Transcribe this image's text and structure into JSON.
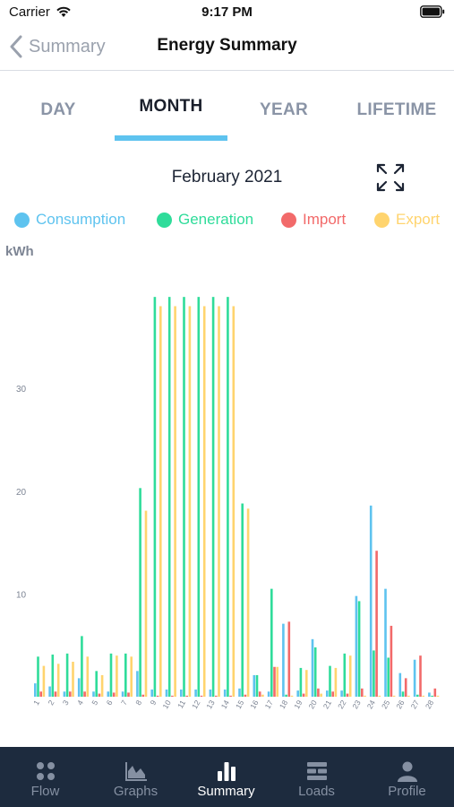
{
  "status_bar": {
    "carrier": "Carrier",
    "time": "9:17 PM"
  },
  "nav": {
    "back_label": "Summary",
    "title": "Energy Summary"
  },
  "tabs": [
    {
      "label": "DAY",
      "active": false
    },
    {
      "label": "MONTH",
      "active": true
    },
    {
      "label": "YEAR",
      "active": false
    },
    {
      "label": "LIFETIME",
      "active": false
    }
  ],
  "period": {
    "label": "February 2021"
  },
  "legend": [
    {
      "label": "Consumption",
      "color": "#5ec3ef"
    },
    {
      "label": "Generation",
      "color": "#2fdc9a"
    },
    {
      "label": "Import",
      "color": "#f26a6a"
    },
    {
      "label": "Export",
      "color": "#ffd46e"
    }
  ],
  "unit_label": "kWh",
  "chart_data": {
    "type": "bar",
    "ylabel": "kWh",
    "ylim": [
      0,
      39
    ],
    "yticks": [
      10,
      20,
      30
    ],
    "categories": [
      "1",
      "2",
      "3",
      "4",
      "5",
      "6",
      "7",
      "8",
      "9",
      "10",
      "11",
      "12",
      "13",
      "14",
      "15",
      "16",
      "17",
      "18",
      "19",
      "20",
      "21",
      "22",
      "23",
      "24",
      "25",
      "26",
      "27",
      "28"
    ],
    "series": [
      {
        "name": "Consumption",
        "color": "#5ec3ef",
        "values": [
          1.3,
          1.0,
          0.5,
          1.8,
          0.5,
          0.5,
          0.5,
          2.5,
          0.7,
          0.7,
          0.7,
          0.7,
          0.7,
          0.7,
          0.8,
          2.1,
          0.5,
          7.1,
          0.6,
          5.6,
          0.6,
          0.6,
          9.8,
          18.6,
          10.5,
          2.3,
          3.6,
          0.4
        ]
      },
      {
        "name": "Generation",
        "color": "#2fdc9a",
        "values": [
          3.9,
          4.1,
          4.2,
          5.9,
          2.5,
          4.2,
          4.2,
          20.3,
          38.9,
          38.9,
          38.9,
          38.9,
          38.9,
          38.9,
          18.8,
          2.1,
          10.5,
          0.2,
          2.8,
          4.8,
          3.0,
          4.2,
          9.3,
          4.5,
          3.8,
          0.5,
          0.2,
          0.1
        ]
      },
      {
        "name": "Import",
        "color": "#f26a6a",
        "values": [
          0.5,
          0.5,
          0.5,
          0.5,
          0.3,
          0.4,
          0.4,
          0.2,
          0.1,
          0.1,
          0.1,
          0.1,
          0.1,
          0.1,
          0.2,
          0.5,
          2.9,
          7.3,
          0.3,
          0.8,
          0.5,
          0.3,
          0.8,
          14.2,
          6.9,
          1.8,
          4.0,
          0.8
        ]
      },
      {
        "name": "Export",
        "color": "#ffd46e",
        "values": [
          3.0,
          3.2,
          3.4,
          3.9,
          2.1,
          4.0,
          3.9,
          18.1,
          38.0,
          38.0,
          38.0,
          38.0,
          38.0,
          38.0,
          18.3,
          0.2,
          2.9,
          0.1,
          2.6,
          0.3,
          2.8,
          4.0,
          0.1,
          0.1,
          0.1,
          0.1,
          0.1,
          0.1
        ]
      }
    ]
  },
  "tab_bar": [
    {
      "label": "Flow",
      "icon": "flow-grid-icon",
      "active": false
    },
    {
      "label": "Graphs",
      "icon": "graphs-icon",
      "active": false
    },
    {
      "label": "Summary",
      "icon": "summary-bars-icon",
      "active": true
    },
    {
      "label": "Loads",
      "icon": "loads-icon",
      "active": false
    },
    {
      "label": "Profile",
      "icon": "profile-icon",
      "active": false
    }
  ]
}
